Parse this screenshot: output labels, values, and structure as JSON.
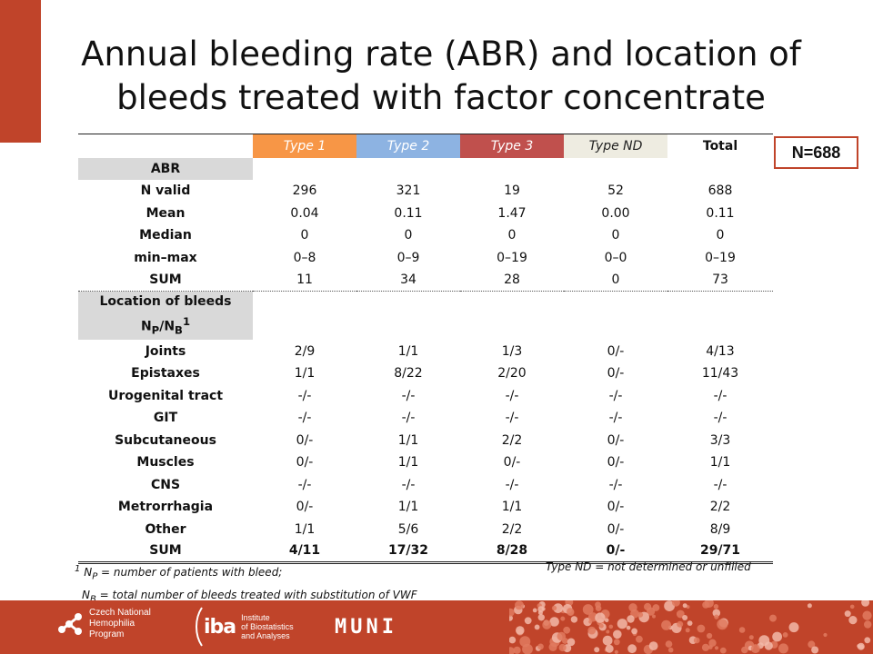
{
  "slide": {
    "title_line1": "Annual bleeding rate (ABR) and location of",
    "title_line2": "bleeds treated with factor concentrate",
    "n_badge": "N=688"
  },
  "table": {
    "headers": [
      "Type 1",
      "Type 2",
      "Type 3",
      "Type ND",
      "Total"
    ],
    "header_colors": [
      "#f79646",
      "#8db3e2",
      "#c0504d",
      "#eeece1",
      "#ffffff"
    ],
    "abr_section": "ABR",
    "abr_rows": [
      {
        "label": "N valid",
        "values": [
          "296",
          "321",
          "19",
          "52",
          "688"
        ]
      },
      {
        "label": "Mean",
        "values": [
          "0.04",
          "0.11",
          "1.47",
          "0.00",
          "0.11"
        ]
      },
      {
        "label": "Median",
        "values": [
          "0",
          "0",
          "0",
          "0",
          "0"
        ]
      },
      {
        "label": "min–max",
        "values": [
          "0–8",
          "0–9",
          "0–19",
          "0–0",
          "0–19"
        ]
      },
      {
        "label": "SUM",
        "values": [
          "11",
          "34",
          "28",
          "0",
          "73"
        ]
      }
    ],
    "location_section": {
      "line1": "Location of bleeds",
      "np": "N",
      "np_sub": "P",
      "slash": "/N",
      "nb_sub": "B",
      "sup": "1"
    },
    "location_rows": [
      {
        "label": "Joints",
        "values": [
          "2/9",
          "1/1",
          "1/3",
          "0/-",
          "4/13"
        ]
      },
      {
        "label": "Epistaxes",
        "values": [
          "1/1",
          "8/22",
          "2/20",
          "0/-",
          "11/43"
        ]
      },
      {
        "label": "Urogenital tract",
        "values": [
          "-/-",
          "-/-",
          "-/-",
          "-/-",
          "-/-"
        ]
      },
      {
        "label": "GIT",
        "values": [
          "-/-",
          "-/-",
          "-/-",
          "-/-",
          "-/-"
        ]
      },
      {
        "label": "Subcutaneous",
        "values": [
          "0/-",
          "1/1",
          "2/2",
          "0/-",
          "3/3"
        ]
      },
      {
        "label": "Muscles",
        "values": [
          "0/-",
          "1/1",
          "0/-",
          "0/-",
          "1/1"
        ]
      },
      {
        "label": "CNS",
        "values": [
          "-/-",
          "-/-",
          "-/-",
          "-/-",
          "-/-"
        ]
      },
      {
        "label": "Metrorrhagia",
        "values": [
          "0/-",
          "1/1",
          "1/1",
          "0/-",
          "2/2"
        ]
      },
      {
        "label": "Other",
        "values": [
          "1/1",
          "5/6",
          "2/2",
          "0/-",
          "8/9"
        ]
      }
    ],
    "location_sum": {
      "label": "SUM",
      "values": [
        "4/11",
        "17/32",
        "8/28",
        "0/-",
        "29/71"
      ]
    }
  },
  "footnotes": {
    "sup": "1",
    "np_n": "N",
    "np_sub": "P",
    "np_text": " = number of patients with bleed;",
    "nb_n": "N",
    "nb_sub": "B",
    "nb_text": " = total number of bleeds treated with substitution of VWF",
    "type_nd": "Type ND = not determined or unfilled"
  },
  "footer": {
    "czech_line1": "Czech National",
    "czech_line2": "Hemophilia",
    "czech_line3": "Program",
    "iba_mark": "iba",
    "iba_line1": "Institute",
    "iba_line2": "of Biostatistics",
    "iba_line3": "and Analyses",
    "muni": "MUNI",
    "band_color": "#c0442a"
  }
}
